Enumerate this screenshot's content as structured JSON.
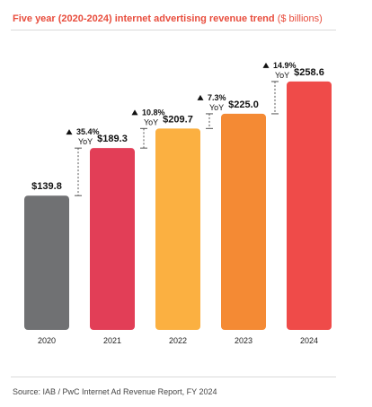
{
  "header": {
    "title_main": "Five year (2020-2024) internet advertising revenue trend",
    "title_unit": "($ billions)"
  },
  "source": {
    "text": "Source:  IAB / PwC Internet Ad Revenue Report, FY 2024"
  },
  "chart_data": {
    "type": "bar",
    "categories": [
      "2020",
      "2021",
      "2022",
      "2023",
      "2024"
    ],
    "values": [
      139.8,
      189.3,
      209.7,
      225.0,
      258.6
    ],
    "value_labels": [
      "$139.8",
      "$189.3",
      "$209.7",
      "$225.0",
      "$258.6"
    ],
    "growth_labels": [
      "",
      "35.4%",
      "10.8%",
      "7.3%",
      "14.9%"
    ],
    "yoy_label": "YoY",
    "colors": [
      "#707173",
      "#e23e57",
      "#fbb041",
      "#f48a34",
      "#ef4b49"
    ],
    "title": "Five year (2020-2024) internet advertising revenue trend ($ billions)",
    "xlabel": "",
    "ylabel": "",
    "ylim": [
      0,
      280
    ],
    "grid": false,
    "legend": "none"
  }
}
